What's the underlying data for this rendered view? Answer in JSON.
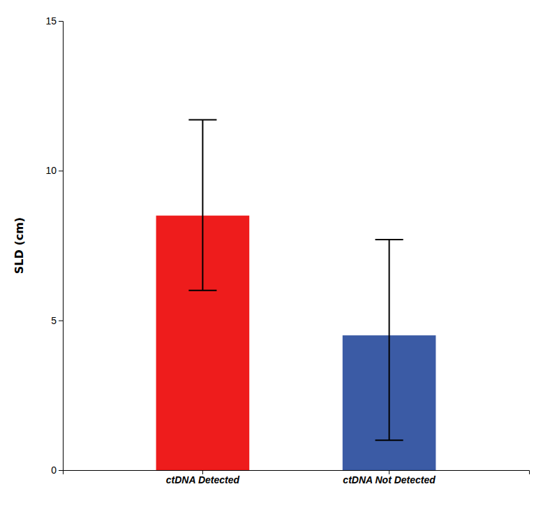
{
  "chart_data": {
    "type": "bar",
    "categories": [
      "ctDNA Detected",
      "ctDNA Not Detected"
    ],
    "values": [
      8.5,
      4.5
    ],
    "error_lower": [
      2.5,
      3.5
    ],
    "error_upper": [
      3.2,
      3.2
    ],
    "colors": [
      "#EE1C1C",
      "#3B5BA5"
    ],
    "ylabel": "SLD (cm)",
    "ylim": [
      0,
      15
    ],
    "yticks": [
      0,
      5,
      10,
      15
    ],
    "grid": false
  }
}
